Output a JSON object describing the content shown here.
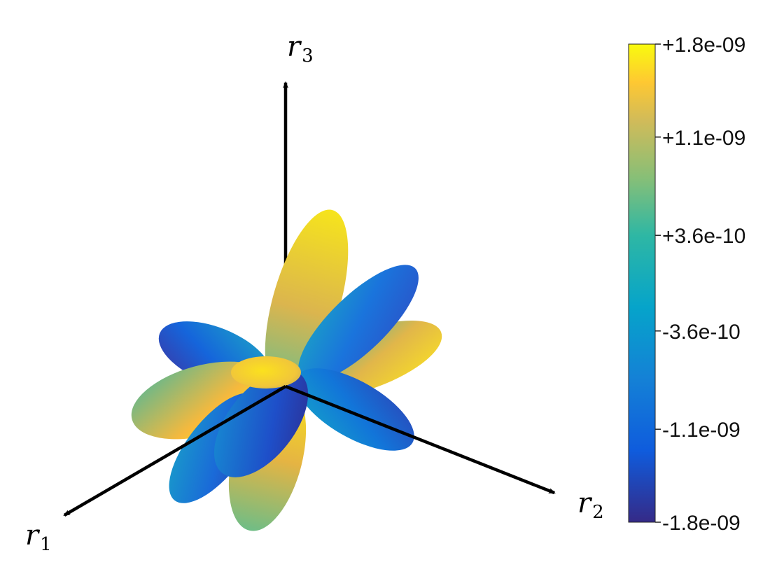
{
  "chart_data": {
    "type": "surface-3d",
    "title": "",
    "axes": [
      {
        "id": "r1",
        "label": "r",
        "subscript": "1"
      },
      {
        "id": "r2",
        "label": "r",
        "subscript": "2"
      },
      {
        "id": "r3",
        "label": "r",
        "subscript": "3"
      }
    ],
    "colorbar": {
      "colormap": "parula",
      "min": -1.8e-09,
      "max": 1.8e-09,
      "ticks": [
        {
          "value": 1.8e-09,
          "label": "+1.8e-09"
        },
        {
          "value": 1.1e-09,
          "label": "+1.1e-09"
        },
        {
          "value": 3.6e-10,
          "label": "+3.6e-10"
        },
        {
          "value": -3.6e-10,
          "label": "-3.6e-10"
        },
        {
          "value": -1.1e-09,
          "label": "-1.1e-09"
        },
        {
          "value": -1.8e-09,
          "label": "-1.8e-09"
        }
      ]
    },
    "lobes": [
      {
        "name": "lobe-upper-yellow",
        "tip_value": 1.6e-09
      },
      {
        "name": "lobe-upper-blue",
        "tip_value": -1.5e-09
      },
      {
        "name": "lobe-right-yellow",
        "tip_value": 1.6e-09
      },
      {
        "name": "lobe-left-blue",
        "tip_value": -1.7e-09
      },
      {
        "name": "lobe-left-yellow",
        "tip_value": 1.8e-09
      },
      {
        "name": "lobe-lower-right-blue",
        "tip_value": -1.5e-09
      },
      {
        "name": "lobe-lower-left-blue",
        "tip_value": -1.7e-09
      },
      {
        "name": "lobe-lower-yellow",
        "tip_value": 1.7e-09
      },
      {
        "name": "lobe-front-dark",
        "tip_value": -1.8e-09
      },
      {
        "name": "lobe-center-yellow",
        "tip_value": 1.7e-09
      }
    ],
    "grid": false,
    "legend": "colorbar-right"
  }
}
